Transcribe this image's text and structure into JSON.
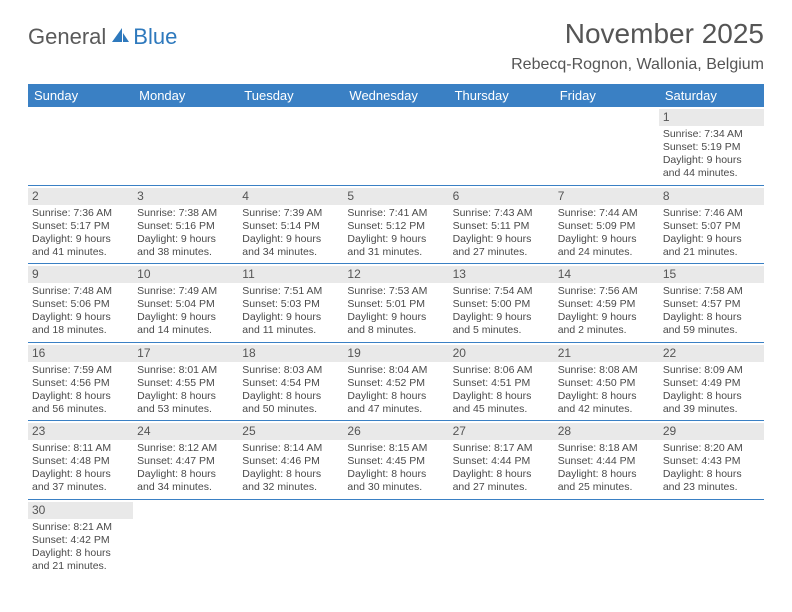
{
  "logo": {
    "text_gray": "General",
    "text_blue": "Blue"
  },
  "header": {
    "month_title": "November 2025",
    "location": "Rebecq-Rognon, Wallonia, Belgium"
  },
  "colors": {
    "header_bg": "#3a80c4",
    "daynum_bg": "#e9e9e9",
    "text": "#555555",
    "body_text": "#4a4a4a",
    "logo_gray": "#5a5a5a",
    "logo_blue": "#2e79bd"
  },
  "day_headers": [
    "Sunday",
    "Monday",
    "Tuesday",
    "Wednesday",
    "Thursday",
    "Friday",
    "Saturday"
  ],
  "weeks": [
    [
      null,
      null,
      null,
      null,
      null,
      null,
      {
        "n": "1",
        "sunrise": "Sunrise: 7:34 AM",
        "sunset": "Sunset: 5:19 PM",
        "daylight": "Daylight: 9 hours and 44 minutes."
      }
    ],
    [
      {
        "n": "2",
        "sunrise": "Sunrise: 7:36 AM",
        "sunset": "Sunset: 5:17 PM",
        "daylight": "Daylight: 9 hours and 41 minutes."
      },
      {
        "n": "3",
        "sunrise": "Sunrise: 7:38 AM",
        "sunset": "Sunset: 5:16 PM",
        "daylight": "Daylight: 9 hours and 38 minutes."
      },
      {
        "n": "4",
        "sunrise": "Sunrise: 7:39 AM",
        "sunset": "Sunset: 5:14 PM",
        "daylight": "Daylight: 9 hours and 34 minutes."
      },
      {
        "n": "5",
        "sunrise": "Sunrise: 7:41 AM",
        "sunset": "Sunset: 5:12 PM",
        "daylight": "Daylight: 9 hours and 31 minutes."
      },
      {
        "n": "6",
        "sunrise": "Sunrise: 7:43 AM",
        "sunset": "Sunset: 5:11 PM",
        "daylight": "Daylight: 9 hours and 27 minutes."
      },
      {
        "n": "7",
        "sunrise": "Sunrise: 7:44 AM",
        "sunset": "Sunset: 5:09 PM",
        "daylight": "Daylight: 9 hours and 24 minutes."
      },
      {
        "n": "8",
        "sunrise": "Sunrise: 7:46 AM",
        "sunset": "Sunset: 5:07 PM",
        "daylight": "Daylight: 9 hours and 21 minutes."
      }
    ],
    [
      {
        "n": "9",
        "sunrise": "Sunrise: 7:48 AM",
        "sunset": "Sunset: 5:06 PM",
        "daylight": "Daylight: 9 hours and 18 minutes."
      },
      {
        "n": "10",
        "sunrise": "Sunrise: 7:49 AM",
        "sunset": "Sunset: 5:04 PM",
        "daylight": "Daylight: 9 hours and 14 minutes."
      },
      {
        "n": "11",
        "sunrise": "Sunrise: 7:51 AM",
        "sunset": "Sunset: 5:03 PM",
        "daylight": "Daylight: 9 hours and 11 minutes."
      },
      {
        "n": "12",
        "sunrise": "Sunrise: 7:53 AM",
        "sunset": "Sunset: 5:01 PM",
        "daylight": "Daylight: 9 hours and 8 minutes."
      },
      {
        "n": "13",
        "sunrise": "Sunrise: 7:54 AM",
        "sunset": "Sunset: 5:00 PM",
        "daylight": "Daylight: 9 hours and 5 minutes."
      },
      {
        "n": "14",
        "sunrise": "Sunrise: 7:56 AM",
        "sunset": "Sunset: 4:59 PM",
        "daylight": "Daylight: 9 hours and 2 minutes."
      },
      {
        "n": "15",
        "sunrise": "Sunrise: 7:58 AM",
        "sunset": "Sunset: 4:57 PM",
        "daylight": "Daylight: 8 hours and 59 minutes."
      }
    ],
    [
      {
        "n": "16",
        "sunrise": "Sunrise: 7:59 AM",
        "sunset": "Sunset: 4:56 PM",
        "daylight": "Daylight: 8 hours and 56 minutes."
      },
      {
        "n": "17",
        "sunrise": "Sunrise: 8:01 AM",
        "sunset": "Sunset: 4:55 PM",
        "daylight": "Daylight: 8 hours and 53 minutes."
      },
      {
        "n": "18",
        "sunrise": "Sunrise: 8:03 AM",
        "sunset": "Sunset: 4:54 PM",
        "daylight": "Daylight: 8 hours and 50 minutes."
      },
      {
        "n": "19",
        "sunrise": "Sunrise: 8:04 AM",
        "sunset": "Sunset: 4:52 PM",
        "daylight": "Daylight: 8 hours and 47 minutes."
      },
      {
        "n": "20",
        "sunrise": "Sunrise: 8:06 AM",
        "sunset": "Sunset: 4:51 PM",
        "daylight": "Daylight: 8 hours and 45 minutes."
      },
      {
        "n": "21",
        "sunrise": "Sunrise: 8:08 AM",
        "sunset": "Sunset: 4:50 PM",
        "daylight": "Daylight: 8 hours and 42 minutes."
      },
      {
        "n": "22",
        "sunrise": "Sunrise: 8:09 AM",
        "sunset": "Sunset: 4:49 PM",
        "daylight": "Daylight: 8 hours and 39 minutes."
      }
    ],
    [
      {
        "n": "23",
        "sunrise": "Sunrise: 8:11 AM",
        "sunset": "Sunset: 4:48 PM",
        "daylight": "Daylight: 8 hours and 37 minutes."
      },
      {
        "n": "24",
        "sunrise": "Sunrise: 8:12 AM",
        "sunset": "Sunset: 4:47 PM",
        "daylight": "Daylight: 8 hours and 34 minutes."
      },
      {
        "n": "25",
        "sunrise": "Sunrise: 8:14 AM",
        "sunset": "Sunset: 4:46 PM",
        "daylight": "Daylight: 8 hours and 32 minutes."
      },
      {
        "n": "26",
        "sunrise": "Sunrise: 8:15 AM",
        "sunset": "Sunset: 4:45 PM",
        "daylight": "Daylight: 8 hours and 30 minutes."
      },
      {
        "n": "27",
        "sunrise": "Sunrise: 8:17 AM",
        "sunset": "Sunset: 4:44 PM",
        "daylight": "Daylight: 8 hours and 27 minutes."
      },
      {
        "n": "28",
        "sunrise": "Sunrise: 8:18 AM",
        "sunset": "Sunset: 4:44 PM",
        "daylight": "Daylight: 8 hours and 25 minutes."
      },
      {
        "n": "29",
        "sunrise": "Sunrise: 8:20 AM",
        "sunset": "Sunset: 4:43 PM",
        "daylight": "Daylight: 8 hours and 23 minutes."
      }
    ],
    [
      {
        "n": "30",
        "sunrise": "Sunrise: 8:21 AM",
        "sunset": "Sunset: 4:42 PM",
        "daylight": "Daylight: 8 hours and 21 minutes."
      },
      null,
      null,
      null,
      null,
      null,
      null
    ]
  ]
}
